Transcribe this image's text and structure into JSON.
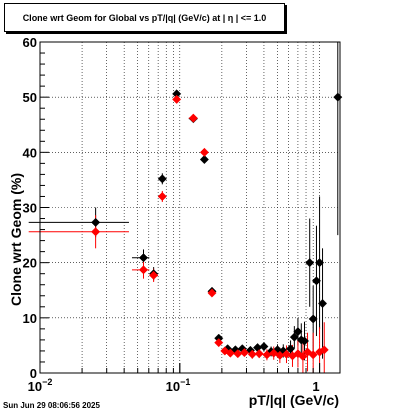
{
  "title": "Clone wrt Geom for Global vs pT/|q| (GeV/c) at |  η  | <= 1.0",
  "footer": "Sun Jun 29 08:06:56 2025",
  "chart_data": {
    "type": "scatter",
    "title": "Clone wrt Geom for Global vs pT/|q| (GeV/c) at |  η  | <= 1.0",
    "xlabel": "pT/|q| (GeV/c)",
    "ylabel": "Clone wrt Geom (%)",
    "x_scale": "log",
    "xlim": [
      0.01,
      1.4
    ],
    "ylim": [
      0,
      60
    ],
    "x_tick_labels": [
      "10^-2",
      "10^-1",
      "1"
    ],
    "y_ticks": [
      0,
      10,
      20,
      30,
      40,
      50,
      60
    ],
    "grid": true,
    "colors": {
      "black_series": "#000000",
      "red_series": "#ff0000",
      "frame": "#000000"
    },
    "series": [
      {
        "color": "#000000",
        "marker": "diamond",
        "points": [
          {
            "x": 0.025,
            "y": 27.3,
            "xerr": [
              0.0167,
              0.0183
            ],
            "yerr": 2.7
          },
          {
            "x": 0.055,
            "y": 20.9,
            "xerr": [
              0.0095,
              0.0055
            ],
            "yerr": 1.5
          },
          {
            "x": 0.065,
            "y": 18.0,
            "xerr": [
              0.0042,
              0.0048
            ],
            "yerr": 1.2
          },
          {
            "x": 0.075,
            "y": 35.2,
            "xerr": [
              0.0048,
              0.0052
            ],
            "yerr": 1.0
          },
          {
            "x": 0.095,
            "y": 50.6,
            "xerr": [
              0.006,
              0.006
            ],
            "yerr": 0.6
          },
          {
            "x": 0.125,
            "y": 46.1,
            "xerr": [
              0.009,
              0.009
            ],
            "yerr": 0.5
          },
          {
            "x": 0.15,
            "y": 38.7,
            "xerr": [
              0.004,
              0.004
            ],
            "yerr": 0.5
          },
          {
            "x": 0.17,
            "y": 14.8,
            "xerr": [
              0.006,
              0.006
            ],
            "yerr": 0.5
          },
          {
            "x": 0.19,
            "y": 6.3,
            "xerr": [
              0.005,
              0.005
            ],
            "yerr": 0.5
          },
          {
            "x": 0.22,
            "y": 4.4,
            "yerr": 0.5
          },
          {
            "x": 0.25,
            "y": 4.2,
            "yerr": 0.5
          },
          {
            "x": 0.28,
            "y": 4.4,
            "yerr": 0.6
          },
          {
            "x": 0.32,
            "y": 4.1,
            "yerr": 0.6
          },
          {
            "x": 0.36,
            "y": 4.6,
            "yerr": 0.7
          },
          {
            "x": 0.4,
            "y": 4.8,
            "yerr": 0.8
          },
          {
            "x": 0.45,
            "y": 3.9,
            "yerr": 0.9
          },
          {
            "x": 0.5,
            "y": 4.2,
            "yerr": 1.0
          },
          {
            "x": 0.55,
            "y": 4.0,
            "yerr": 1.2
          },
          {
            "x": 0.62,
            "y": 4.4,
            "yerr": 1.5
          },
          {
            "x": 0.66,
            "y": 6.5,
            "yerr": 2.0
          },
          {
            "x": 0.7,
            "y": 7.5,
            "yerr": 2.5
          },
          {
            "x": 0.74,
            "y": 6.0,
            "yerr": 3.0
          },
          {
            "x": 0.78,
            "y": 5.8,
            "yerr": 3.5
          },
          {
            "x": 0.85,
            "y": 20.0,
            "yerr": 8.0
          },
          {
            "x": 0.9,
            "y": 9.8,
            "yerr": 6.0
          },
          {
            "x": 0.95,
            "y": 16.7,
            "yerr": 10.0
          },
          {
            "x": 1.0,
            "y": 20.0,
            "yerr": 12.0
          },
          {
            "x": 1.05,
            "y": 12.6,
            "yerr": 10.0
          },
          {
            "x": 1.35,
            "y": 50.0,
            "yerr": 25.0
          }
        ]
      },
      {
        "color": "#ff0000",
        "marker": "diamond",
        "points": [
          {
            "x": 0.025,
            "y": 25.6,
            "xerr": [
              0.0167,
              0.0183
            ],
            "yerr": 3.0
          },
          {
            "x": 0.055,
            "y": 18.7,
            "xerr": [
              0.0095,
              0.0055
            ],
            "yerr": 1.6
          },
          {
            "x": 0.065,
            "y": 17.7,
            "xerr": [
              0.0042,
              0.0048
            ],
            "yerr": 1.2
          },
          {
            "x": 0.075,
            "y": 32.0,
            "xerr": [
              0.0048,
              0.0052
            ],
            "yerr": 1.0
          },
          {
            "x": 0.095,
            "y": 49.6,
            "xerr": [
              0.006,
              0.006
            ],
            "yerr": 0.6
          },
          {
            "x": 0.125,
            "y": 46.2,
            "xerr": [
              0.009,
              0.009
            ],
            "yerr": 0.5
          },
          {
            "x": 0.15,
            "y": 40.0,
            "xerr": [
              0.004,
              0.004
            ],
            "yerr": 0.5
          },
          {
            "x": 0.17,
            "y": 14.5,
            "xerr": [
              0.006,
              0.006
            ],
            "yerr": 0.5
          },
          {
            "x": 0.19,
            "y": 5.5,
            "xerr": [
              0.005,
              0.005
            ],
            "yerr": 0.5
          },
          {
            "x": 0.21,
            "y": 4.0,
            "yerr": 0.6
          },
          {
            "x": 0.23,
            "y": 3.6,
            "yerr": 0.6
          },
          {
            "x": 0.26,
            "y": 3.5,
            "yerr": 0.6
          },
          {
            "x": 0.29,
            "y": 3.7,
            "yerr": 0.7
          },
          {
            "x": 0.33,
            "y": 3.4,
            "yerr": 0.8
          },
          {
            "x": 0.37,
            "y": 3.5,
            "yerr": 0.8
          },
          {
            "x": 0.42,
            "y": 3.3,
            "yerr": 1.0
          },
          {
            "x": 0.47,
            "y": 3.6,
            "yerr": 1.2
          },
          {
            "x": 0.52,
            "y": 3.2,
            "yerr": 1.4
          },
          {
            "x": 0.58,
            "y": 3.4,
            "yerr": 1.6
          },
          {
            "x": 0.64,
            "y": 3.1,
            "yerr": 2.0
          },
          {
            "x": 0.7,
            "y": 3.5,
            "yerr": 2.5
          },
          {
            "x": 0.76,
            "y": 3.0,
            "yerr": 3.0
          },
          {
            "x": 0.82,
            "y": 3.8,
            "yerr": 3.5
          },
          {
            "x": 0.9,
            "y": 3.3,
            "yerr": 4.0
          },
          {
            "x": 1.0,
            "y": 3.8,
            "yerr": 4.5
          },
          {
            "x": 1.08,
            "y": 4.2,
            "yerr": 5.0
          }
        ]
      }
    ]
  }
}
